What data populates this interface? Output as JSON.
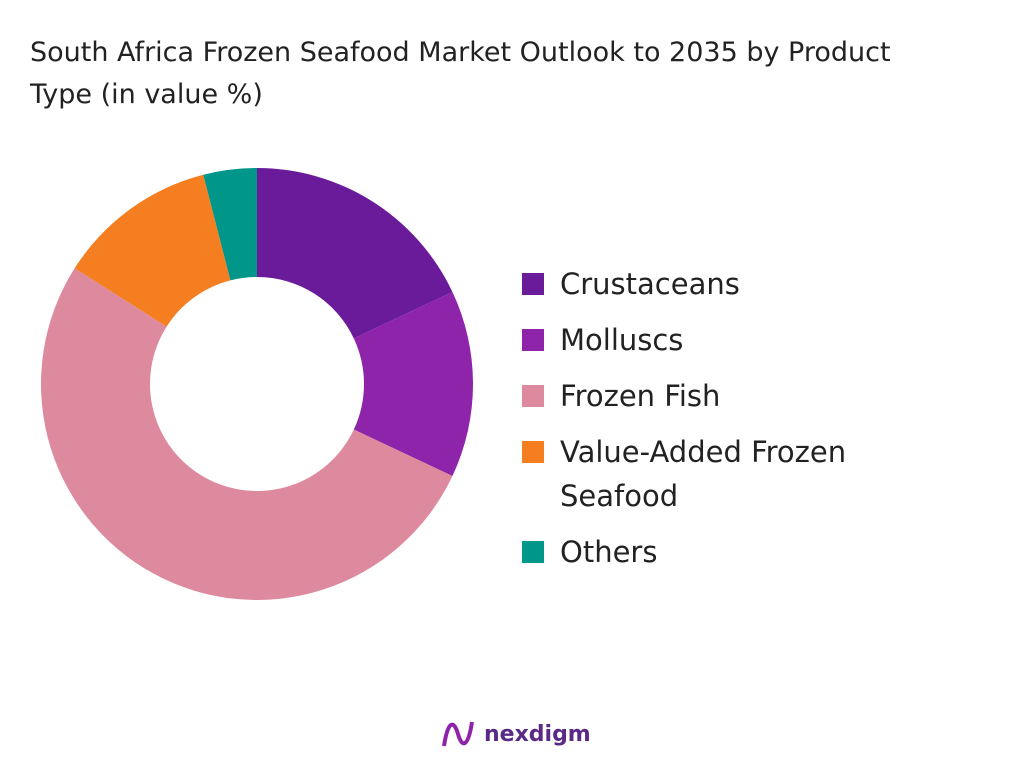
{
  "chart_data": {
    "type": "donut",
    "title": "South Africa Frozen Seafood Market Outlook to 2035 by Product Type (in value %)",
    "categories": [
      "Crustaceans",
      "Molluscs",
      "Frozen Fish",
      "Value-Added Frozen Seafood",
      "Others"
    ],
    "values": [
      18,
      14,
      52,
      12,
      4
    ],
    "colors": [
      "#6a1b9a",
      "#8e24aa",
      "#de8a9e",
      "#f57f20",
      "#00968a"
    ],
    "legend": "right"
  },
  "footer": {
    "brand": "nexdigm"
  }
}
